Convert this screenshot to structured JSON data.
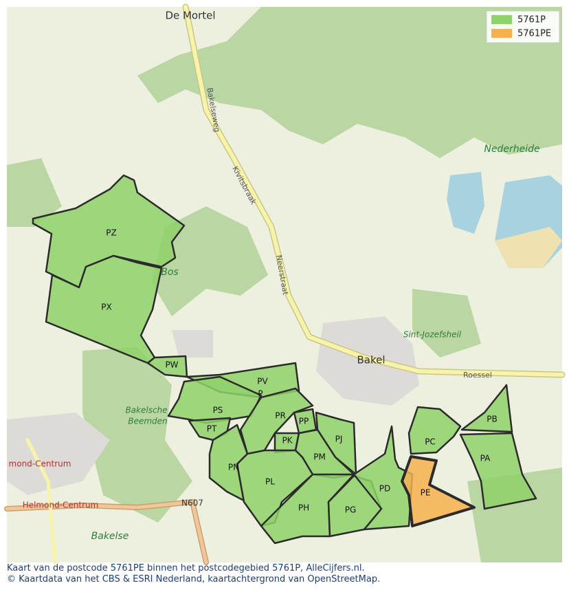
{
  "legend": [
    {
      "label": "5761P",
      "color": "#8fd16a"
    },
    {
      "label": "5761PE",
      "color": "#f5b04f"
    }
  ],
  "regions": [
    "PZ",
    "PX",
    "PW",
    "PV",
    "P",
    "PS",
    "PT",
    "PN",
    "PR",
    "PP",
    "PK",
    "PJ",
    "PM",
    "PL",
    "PH",
    "PG",
    "PD",
    "PE",
    "PC",
    "PB",
    "PA"
  ],
  "places": [
    "De Mortel",
    "Bakelseweg",
    "Kivitsbraak",
    "Neerstraat",
    "Nederheide",
    "Bos",
    "Sint-Jozefsheil",
    "Bakel",
    "Roessel",
    "Bakelsche",
    "Beemden",
    "N607",
    "Helmond-Centrum",
    "mond-Centrum",
    "Bakelse"
  ],
  "caption": [
    "Kaart van de postcode 5761PE binnen het postcodegebied 5761P, AlleCijfers.nl.",
    "© Kaartdata van het CBS & ESRI Nederland, kaartachtergrond van OpenStreetMap."
  ]
}
